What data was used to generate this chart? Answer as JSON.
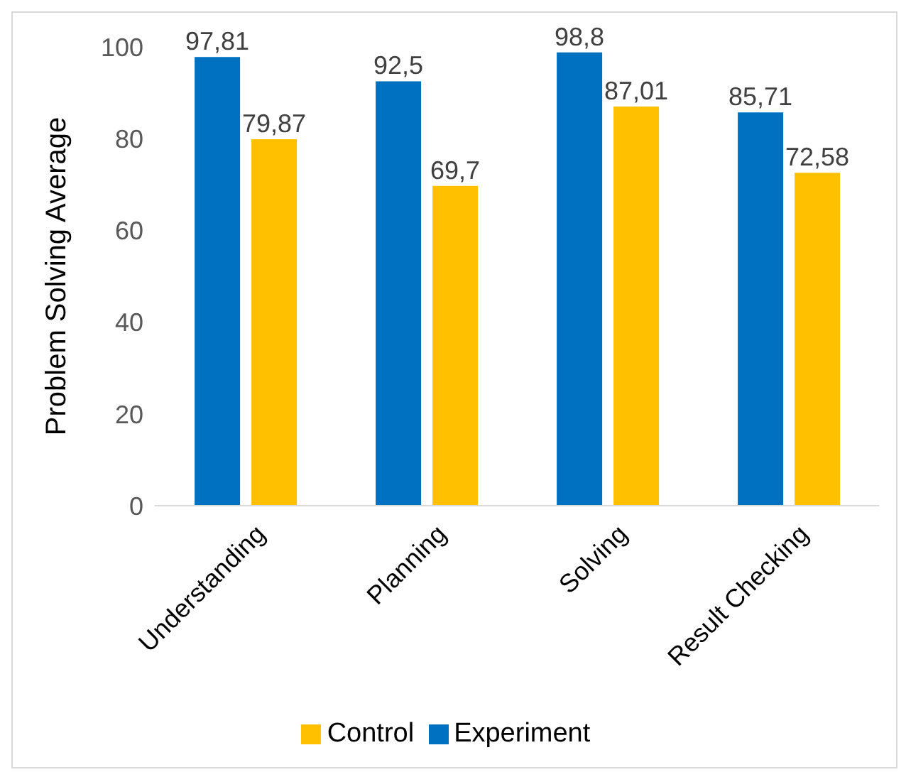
{
  "chart_data": {
    "type": "bar",
    "ylabel": "Problem Solving Average",
    "categories": [
      "Understanding",
      "Planning",
      "Solving",
      "Result Checking"
    ],
    "series": [
      {
        "name": "Experiment",
        "color": "#0070c0",
        "values": [
          97.81,
          92.5,
          98.8,
          85.71
        ],
        "value_labels": [
          "97,81",
          "92,5",
          "98,8",
          "85,71"
        ]
      },
      {
        "name": "Control",
        "color": "#ffc000",
        "values": [
          79.87,
          69.7,
          87.01,
          72.58
        ],
        "value_labels": [
          "79,87",
          "69,7",
          "87,01",
          "72,58"
        ]
      }
    ],
    "ylim": [
      0,
      100
    ],
    "yticks": [
      0,
      20,
      40,
      60,
      80,
      100
    ],
    "grid": false,
    "legend": "bottom"
  }
}
